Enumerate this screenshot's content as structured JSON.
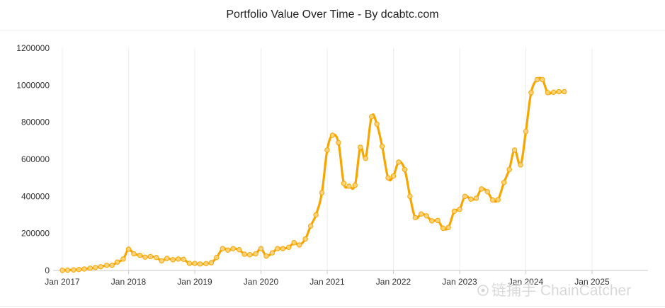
{
  "chart_data": {
    "type": "line",
    "title": "Portfolio Value Over Time - By dcabtc.com",
    "xlabel": "",
    "ylabel": "",
    "ylim": [
      0,
      1200000
    ],
    "xlim": [
      2017.0,
      2025.85
    ],
    "yticks": [
      0,
      200000,
      400000,
      600000,
      800000,
      1000000,
      1200000
    ],
    "ytick_labels": [
      "0",
      "200000",
      "400000",
      "600000",
      "800000",
      "1000000",
      "1200000"
    ],
    "xticks": [
      2017,
      2018,
      2019,
      2020,
      2021,
      2022,
      2023,
      2024,
      2025
    ],
    "xtick_labels": [
      "Jan 2017",
      "Jan 2018",
      "Jan 2019",
      "Jan 2020",
      "Jan 2021",
      "Jan 2022",
      "Jan 2023",
      "Jan 2024",
      "Jan 2025"
    ],
    "grid": "vertical",
    "series": [
      {
        "name": "Portfolio Value",
        "color": "#f7a600",
        "x": [
          2017.0,
          2017.08,
          2017.17,
          2017.25,
          2017.33,
          2017.42,
          2017.5,
          2017.58,
          2017.67,
          2017.75,
          2017.83,
          2017.92,
          2018.0,
          2018.08,
          2018.17,
          2018.25,
          2018.33,
          2018.42,
          2018.5,
          2018.58,
          2018.67,
          2018.75,
          2018.83,
          2018.92,
          2019.0,
          2019.08,
          2019.17,
          2019.25,
          2019.33,
          2019.42,
          2019.5,
          2019.58,
          2019.67,
          2019.75,
          2019.83,
          2019.92,
          2020.0,
          2020.08,
          2020.17,
          2020.25,
          2020.33,
          2020.42,
          2020.5,
          2020.58,
          2020.67,
          2020.75,
          2020.83,
          2020.92,
          2021.0,
          2021.08,
          2021.17,
          2021.25,
          2021.33,
          2021.42,
          2021.5,
          2021.58,
          2021.67,
          2021.75,
          2021.83,
          2021.92,
          2022.0,
          2022.08,
          2022.17,
          2022.25,
          2022.33,
          2022.42,
          2022.5,
          2022.58,
          2022.67,
          2022.75,
          2022.83,
          2022.92,
          2023.0,
          2023.08,
          2023.17,
          2023.25,
          2023.33,
          2023.42,
          2023.5,
          2023.58,
          2023.67,
          2023.75,
          2023.83,
          2023.92,
          2024.0,
          2024.08,
          2024.17,
          2024.25,
          2024.33,
          2024.42,
          2024.5,
          2024.58
        ],
        "values": [
          1000,
          2000,
          3000,
          5000,
          8000,
          12000,
          16000,
          20000,
          28000,
          28000,
          45000,
          62000,
          115000,
          90000,
          82000,
          72000,
          75000,
          70000,
          52000,
          65000,
          58000,
          62000,
          60000,
          38000,
          38000,
          35000,
          37000,
          42000,
          70000,
          118000,
          110000,
          118000,
          112000,
          88000,
          85000,
          90000,
          118000,
          78000,
          95000,
          118000,
          118000,
          125000,
          150000,
          138000,
          170000,
          240000,
          300000,
          420000,
          650000,
          730000,
          690000,
          470000,
          455000,
          460000,
          665000,
          605000,
          830000,
          790000,
          670000,
          500000,
          510000,
          585000,
          545000,
          400000,
          285000,
          305000,
          295000,
          268000,
          270000,
          228000,
          232000,
          320000,
          330000,
          400000,
          385000,
          390000,
          440000,
          425000,
          380000,
          382000,
          475000,
          545000,
          650000,
          570000,
          750000,
          960000,
          1030000,
          1030000,
          960000,
          962000,
          965000,
          965000
        ]
      }
    ]
  },
  "watermark": {
    "text": "链捕手 ChainCatcher"
  }
}
